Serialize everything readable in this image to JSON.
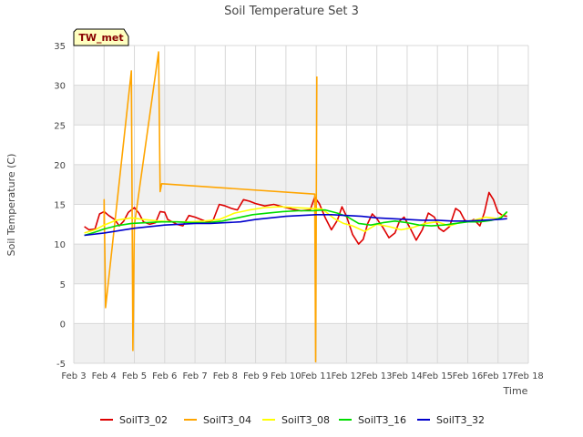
{
  "chart_data": {
    "type": "line",
    "title": "Soil Temperature Set 3",
    "xlabel": "Time",
    "ylabel": "Soil Temperature (C)",
    "badge": "TW_met",
    "xlim": [
      3,
      18
    ],
    "ylim": [
      -5,
      35
    ],
    "xticks": [
      {
        "v": 3,
        "label": "Feb 3"
      },
      {
        "v": 4,
        "label": "Feb 4"
      },
      {
        "v": 5,
        "label": "Feb 5"
      },
      {
        "v": 6,
        "label": "Feb 6"
      },
      {
        "v": 7,
        "label": "Feb 7"
      },
      {
        "v": 8,
        "label": "Feb 8"
      },
      {
        "v": 9,
        "label": "Feb 9"
      },
      {
        "v": 10,
        "label": "Feb 10"
      },
      {
        "v": 11,
        "label": "Feb 11"
      },
      {
        "v": 12,
        "label": "Feb 12"
      },
      {
        "v": 13,
        "label": "Feb 13"
      },
      {
        "v": 14,
        "label": "Feb 14"
      },
      {
        "v": 15,
        "label": "Feb 15"
      },
      {
        "v": 16,
        "label": "Feb 16"
      },
      {
        "v": 17,
        "label": "Feb 17"
      },
      {
        "v": 18,
        "label": "Feb 18"
      }
    ],
    "yticks": [
      {
        "v": -5,
        "label": "-5"
      },
      {
        "v": 0,
        "label": "0"
      },
      {
        "v": 5,
        "label": "5"
      },
      {
        "v": 10,
        "label": "10"
      },
      {
        "v": 15,
        "label": "15"
      },
      {
        "v": 20,
        "label": "20"
      },
      {
        "v": 25,
        "label": "25"
      },
      {
        "v": 30,
        "label": "30"
      },
      {
        "v": 35,
        "label": "35"
      }
    ],
    "series": [
      {
        "name": "SoilT3_02",
        "color": "#dd0000",
        "x": [
          3.35,
          3.5,
          3.7,
          3.85,
          4.0,
          4.15,
          4.35,
          4.5,
          4.65,
          4.8,
          5.0,
          5.15,
          5.3,
          5.5,
          5.7,
          5.85,
          6.0,
          6.1,
          6.25,
          6.4,
          6.6,
          6.8,
          7.0,
          7.2,
          7.4,
          7.6,
          7.8,
          8.0,
          8.2,
          8.4,
          8.6,
          8.8,
          9.0,
          9.3,
          9.6,
          9.9,
          10.2,
          10.5,
          10.8,
          10.95,
          11.1,
          11.3,
          11.5,
          11.7,
          11.85,
          12.0,
          12.2,
          12.4,
          12.55,
          12.7,
          12.85,
          13.0,
          13.2,
          13.4,
          13.6,
          13.75,
          13.9,
          14.1,
          14.3,
          14.5,
          14.7,
          14.9,
          15.05,
          15.2,
          15.4,
          15.6,
          15.75,
          15.9,
          16.05,
          16.2,
          16.4,
          16.55,
          16.7,
          16.85,
          17.0,
          17.15,
          17.3
        ],
        "y": [
          12.2,
          11.8,
          11.9,
          13.8,
          14.1,
          13.6,
          13.1,
          12.3,
          12.9,
          14.0,
          14.6,
          13.9,
          12.8,
          12.5,
          12.7,
          14.1,
          14.0,
          13.1,
          12.8,
          12.5,
          12.3,
          13.6,
          13.4,
          13.1,
          12.8,
          13.0,
          15.0,
          14.8,
          14.5,
          14.3,
          15.6,
          15.4,
          15.1,
          14.8,
          15.0,
          14.7,
          14.4,
          14.2,
          14.3,
          15.9,
          15.1,
          13.3,
          11.8,
          13.0,
          14.7,
          13.5,
          11.2,
          10.0,
          10.6,
          12.6,
          13.8,
          13.2,
          12.1,
          10.8,
          11.4,
          12.9,
          13.4,
          12.0,
          10.5,
          11.8,
          13.9,
          13.4,
          12.0,
          11.6,
          12.2,
          14.5,
          14.1,
          13.0,
          12.8,
          13.1,
          12.3,
          14.0,
          16.5,
          15.6,
          14.0,
          13.6,
          13.5
        ]
      },
      {
        "name": "SoilT3_04",
        "color": "#ffa500",
        "x": [
          4.0,
          4.0,
          4.05,
          4.9,
          4.95,
          5.0,
          5.8,
          5.85,
          5.9,
          10.95,
          10.98,
          11.02
        ],
        "y": [
          12.3,
          15.6,
          2.0,
          31.8,
          -3.4,
          12.4,
          34.2,
          16.6,
          17.6,
          16.3,
          -4.8,
          31.1
        ]
      },
      {
        "name": "SoilT3_08",
        "color": "#ffff00",
        "x": [
          3.35,
          3.7,
          4.0,
          4.4,
          4.9,
          5.3,
          5.8,
          6.3,
          6.8,
          7.3,
          7.8,
          8.3,
          8.8,
          9.3,
          9.8,
          10.3,
          10.8,
          11.2,
          11.6,
          11.9,
          12.2,
          12.6,
          13.0,
          13.4,
          13.8,
          14.2,
          14.6,
          15.0,
          15.4,
          15.8,
          16.2,
          16.6,
          17.0,
          17.3
        ],
        "y": [
          11.4,
          11.8,
          12.4,
          13.0,
          13.3,
          13.1,
          12.9,
          12.8,
          12.8,
          12.9,
          13.1,
          13.9,
          14.3,
          14.6,
          14.7,
          14.6,
          14.5,
          14.4,
          13.2,
          12.6,
          12.3,
          11.6,
          12.5,
          12.2,
          11.8,
          12.1,
          12.6,
          12.8,
          12.3,
          12.8,
          13.0,
          13.4,
          13.2,
          14.0
        ]
      },
      {
        "name": "SoilT3_16",
        "color": "#00dd00",
        "x": [
          3.35,
          3.7,
          4.0,
          4.4,
          4.9,
          5.4,
          5.9,
          6.4,
          6.9,
          7.4,
          7.9,
          8.4,
          8.9,
          9.4,
          9.9,
          10.4,
          10.9,
          11.3,
          11.7,
          12.0,
          12.4,
          12.8,
          13.2,
          13.6,
          14.0,
          14.4,
          14.8,
          15.2,
          15.6,
          16.0,
          16.4,
          16.8,
          17.1,
          17.3
        ],
        "y": [
          11.1,
          11.5,
          11.9,
          12.3,
          12.6,
          12.7,
          12.8,
          12.8,
          12.7,
          12.7,
          12.9,
          13.3,
          13.7,
          13.9,
          14.1,
          14.2,
          14.2,
          14.3,
          13.9,
          13.5,
          12.6,
          12.4,
          12.7,
          12.9,
          12.7,
          12.4,
          12.3,
          12.4,
          12.6,
          12.8,
          12.8,
          13.0,
          13.3,
          14.1
        ]
      },
      {
        "name": "SoilT3_32",
        "color": "#0000cc",
        "x": [
          3.35,
          4.0,
          4.5,
          5.0,
          5.5,
          6.0,
          6.5,
          7.0,
          7.5,
          8.0,
          8.5,
          9.0,
          9.5,
          10.0,
          10.5,
          11.0,
          11.5,
          12.0,
          12.5,
          13.0,
          13.5,
          14.0,
          14.5,
          15.0,
          15.5,
          16.0,
          16.5,
          17.0,
          17.3
        ],
        "y": [
          11.1,
          11.4,
          11.7,
          12.0,
          12.2,
          12.4,
          12.5,
          12.6,
          12.6,
          12.7,
          12.8,
          13.1,
          13.3,
          13.5,
          13.6,
          13.7,
          13.7,
          13.6,
          13.5,
          13.3,
          13.2,
          13.1,
          13.0,
          13.0,
          12.9,
          12.9,
          13.0,
          13.1,
          13.2
        ]
      }
    ]
  }
}
